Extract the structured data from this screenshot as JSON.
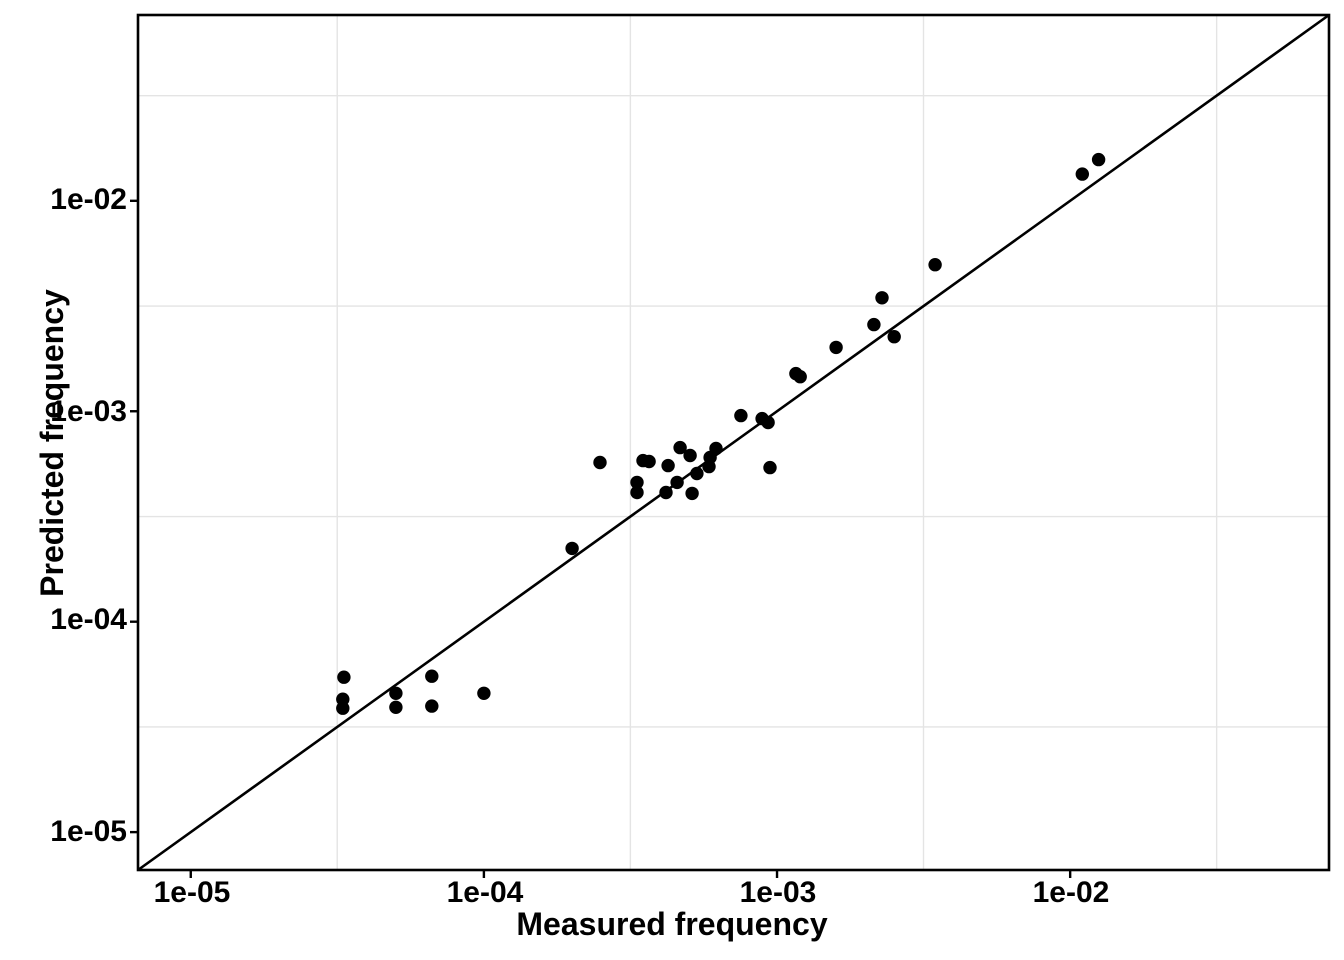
{
  "axes": {
    "x": {
      "title": "Measured frequency",
      "ticks": [
        {
          "value": 1e-05,
          "label": "1e-05"
        },
        {
          "value": 0.0001,
          "label": "1e-04"
        },
        {
          "value": 0.001,
          "label": "1e-03"
        },
        {
          "value": 0.01,
          "label": "1e-02"
        }
      ]
    },
    "y": {
      "title": "Predicted frequency",
      "ticks": [
        {
          "value": 0.01,
          "label": "1e-02"
        },
        {
          "value": 0.001,
          "label": "1e-03"
        },
        {
          "value": 0.0001,
          "label": "1e-04"
        },
        {
          "value": 1e-05,
          "label": "1e-05"
        }
      ]
    }
  },
  "colors": {
    "point": "#000000",
    "reference_line": "#000000",
    "grid": "#e4e4e4",
    "panel_border": "#000000",
    "background": "#ffffff",
    "text": "#000000"
  },
  "chart_data": {
    "type": "scatter",
    "title": "",
    "xlabel": "Measured frequency",
    "ylabel": "Predicted frequency",
    "xscale": "log10",
    "yscale": "log10",
    "xlim": [
      6.6e-06,
      0.076
    ],
    "ylim": [
      6.6e-06,
      0.076
    ],
    "grid": "minor half-decade gridlines only, light gray",
    "legend": "none",
    "reference_line": "y = x identity line, black, corner to corner",
    "minor_gridlines_x": [
      3.16e-05,
      0.000316,
      0.00316,
      0.0316
    ],
    "minor_gridlines_y": [
      3.16e-05,
      0.000316,
      0.00316,
      0.0316
    ],
    "points": [
      {
        "x": 3.33e-05,
        "y": 5.45e-05
      },
      {
        "x": 3.3e-05,
        "y": 4.28e-05
      },
      {
        "x": 3.3e-05,
        "y": 3.88e-05
      },
      {
        "x": 5.01e-05,
        "y": 4.57e-05
      },
      {
        "x": 5.01e-05,
        "y": 3.92e-05
      },
      {
        "x": 6.64e-05,
        "y": 5.51e-05
      },
      {
        "x": 6.64e-05,
        "y": 3.97e-05
      },
      {
        "x": 0.0001,
        "y": 4.57e-05
      },
      {
        "x": 0.0002,
        "y": 0.000223
      },
      {
        "x": 0.000249,
        "y": 0.000571
      },
      {
        "x": 0.000333,
        "y": 0.000459
      },
      {
        "x": 0.000333,
        "y": 0.000411
      },
      {
        "x": 0.000349,
        "y": 0.000583
      },
      {
        "x": 0.000366,
        "y": 0.000577
      },
      {
        "x": 0.000418,
        "y": 0.000411
      },
      {
        "x": 0.000425,
        "y": 0.000552
      },
      {
        "x": 0.000467,
        "y": 0.000672
      },
      {
        "x": 0.000456,
        "y": 0.000459
      },
      {
        "x": 0.000505,
        "y": 0.000616
      },
      {
        "x": 0.000513,
        "y": 0.000407
      },
      {
        "x": 0.000533,
        "y": 0.000506
      },
      {
        "x": 0.000586,
        "y": 0.000546
      },
      {
        "x": 0.000591,
        "y": 0.000603
      },
      {
        "x": 0.000619,
        "y": 0.000665
      },
      {
        "x": 0.000753,
        "y": 0.000954
      },
      {
        "x": 0.000889,
        "y": 0.000923
      },
      {
        "x": 0.000932,
        "y": 0.000884
      },
      {
        "x": 0.000946,
        "y": 0.00054
      },
      {
        "x": 0.00116,
        "y": 0.00151
      },
      {
        "x": 0.0012,
        "y": 0.00146
      },
      {
        "x": 0.00159,
        "y": 0.00201
      },
      {
        "x": 0.00214,
        "y": 0.00258
      },
      {
        "x": 0.00228,
        "y": 0.00346
      },
      {
        "x": 0.00251,
        "y": 0.00226
      },
      {
        "x": 0.00346,
        "y": 0.00497
      },
      {
        "x": 0.011,
        "y": 0.0134
      },
      {
        "x": 0.0125,
        "y": 0.0157
      }
    ]
  }
}
